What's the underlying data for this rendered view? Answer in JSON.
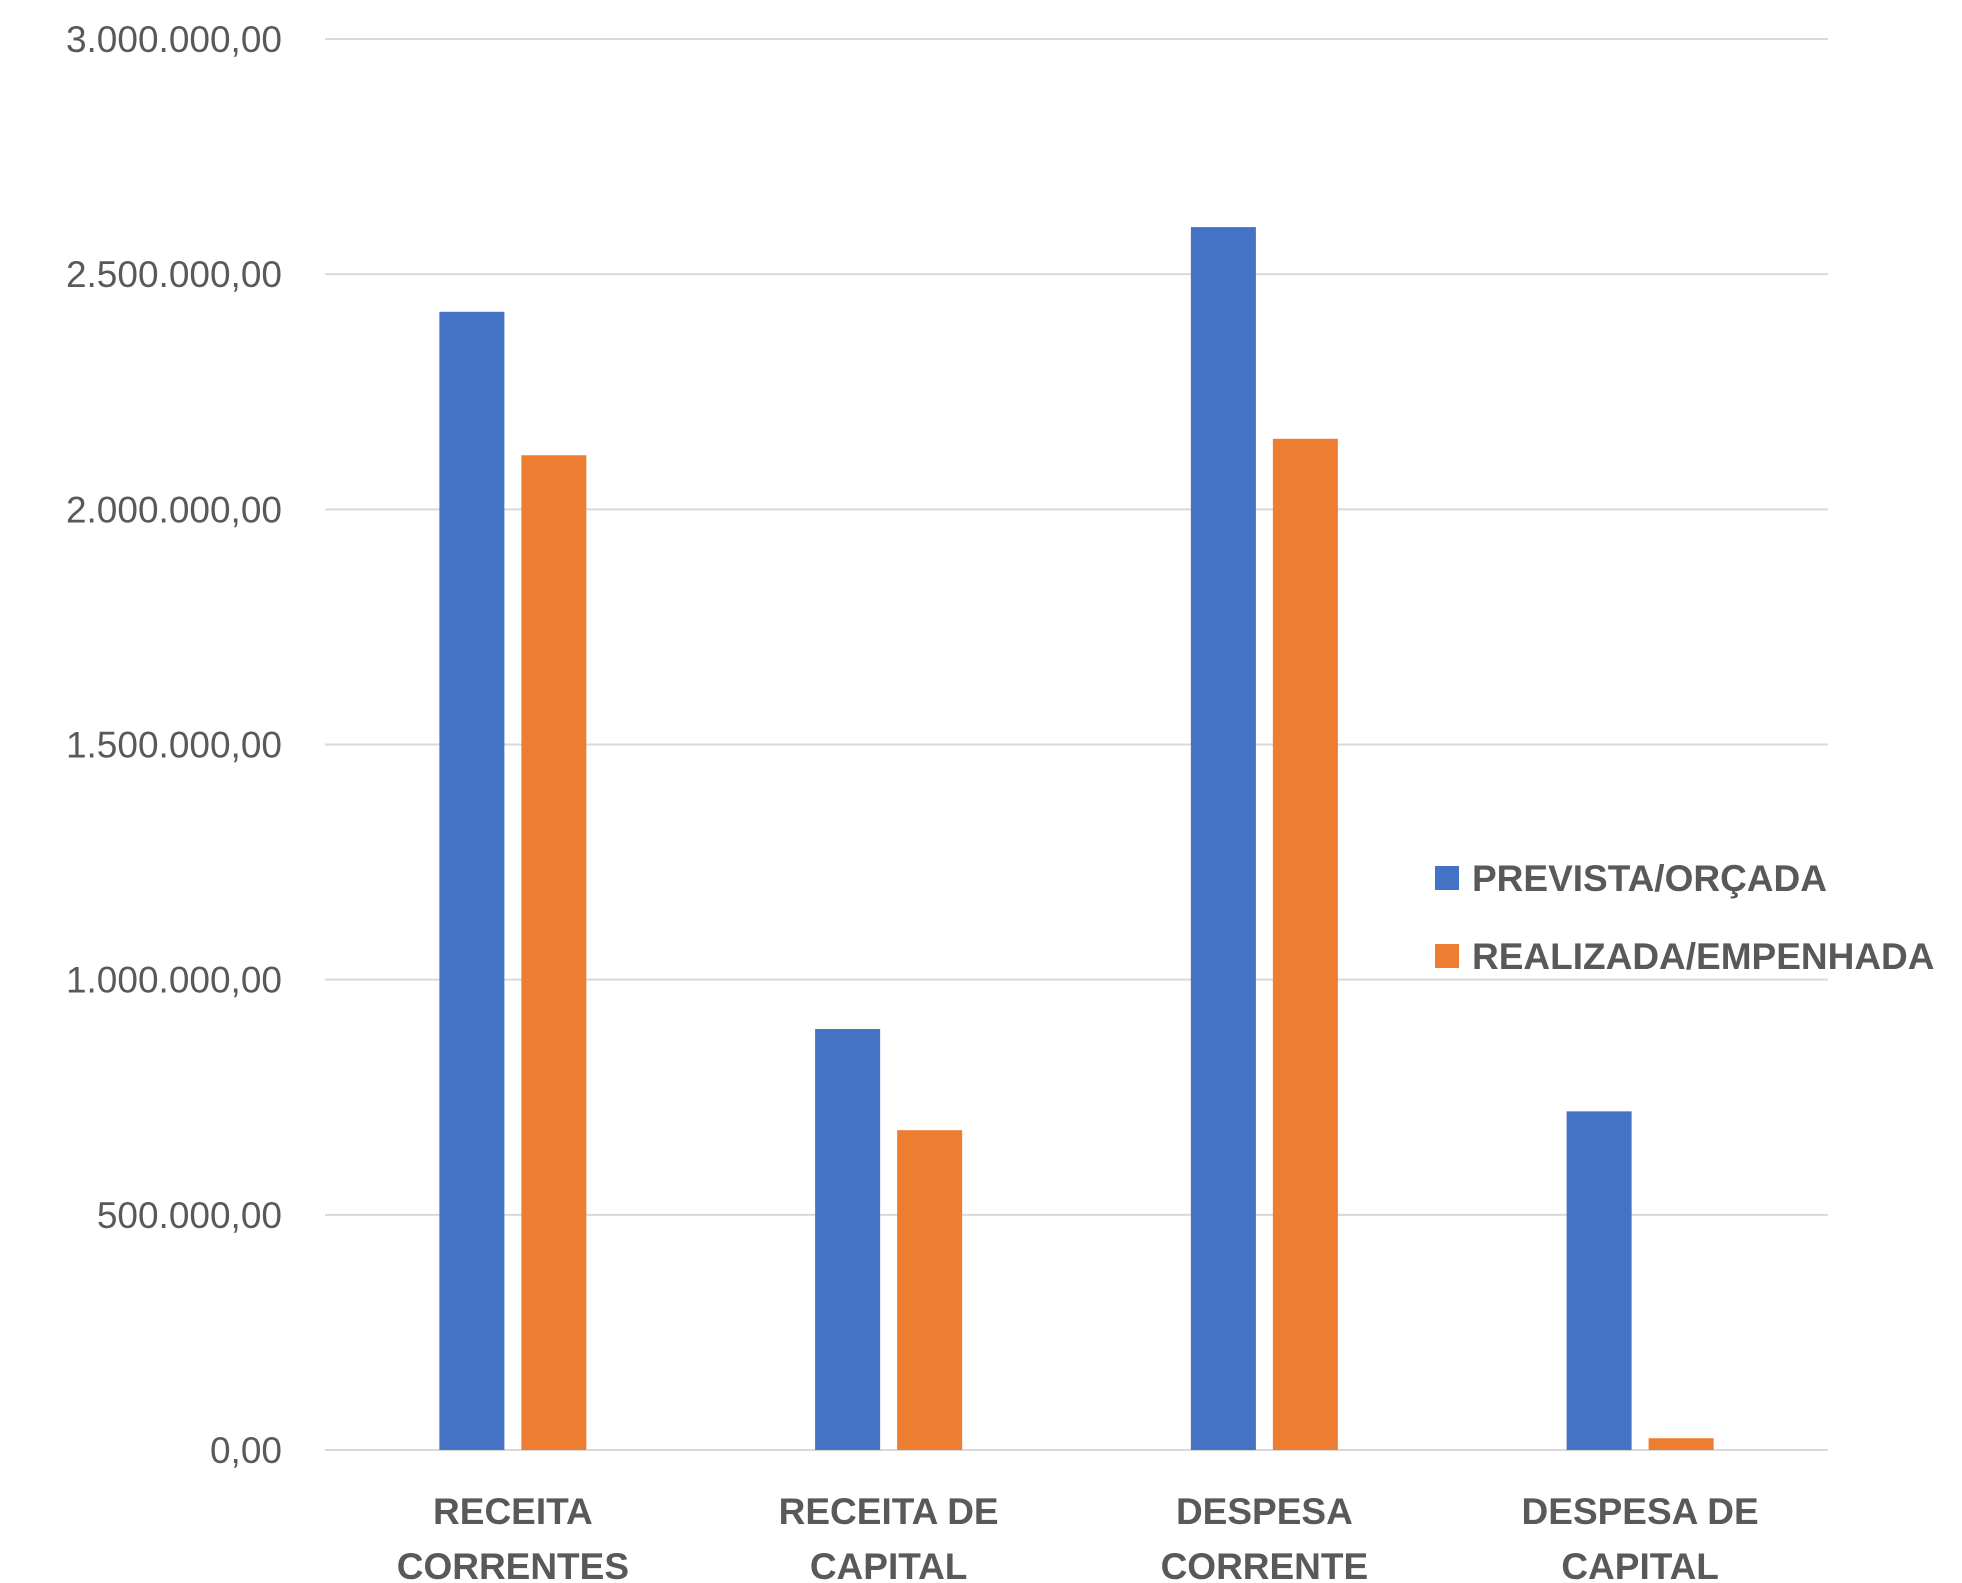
{
  "chart_data": {
    "type": "bar",
    "title": "",
    "xlabel": "",
    "ylabel": "",
    "categories": [
      [
        "RECEITA",
        "CORRENTES"
      ],
      [
        "RECEITA DE",
        "CAPITAL"
      ],
      [
        "DESPESA",
        "CORRENTE"
      ],
      [
        "DESPESA DE",
        "CAPITAL"
      ]
    ],
    "series": [
      {
        "name": "PREVISTA/ORÇADA",
        "color": "#4472C4",
        "values": [
          2420000,
          895000,
          2600000,
          720000
        ]
      },
      {
        "name": "REALIZADA/EMPENHADA",
        "color": "#ED7D31",
        "values": [
          2115000,
          680000,
          2150000,
          25000
        ]
      }
    ],
    "ylim": [
      0,
      3000000
    ],
    "yticks": [
      0,
      500000,
      1000000,
      1500000,
      2000000,
      2500000,
      3000000
    ],
    "ytick_labels": [
      "0,00",
      "500.000,00",
      "1.000.000,00",
      "1.500.000,00",
      "2.000.000,00",
      "2.500.000,00",
      "3.000.000,00"
    ],
    "grid": true,
    "legend_position": "right"
  }
}
